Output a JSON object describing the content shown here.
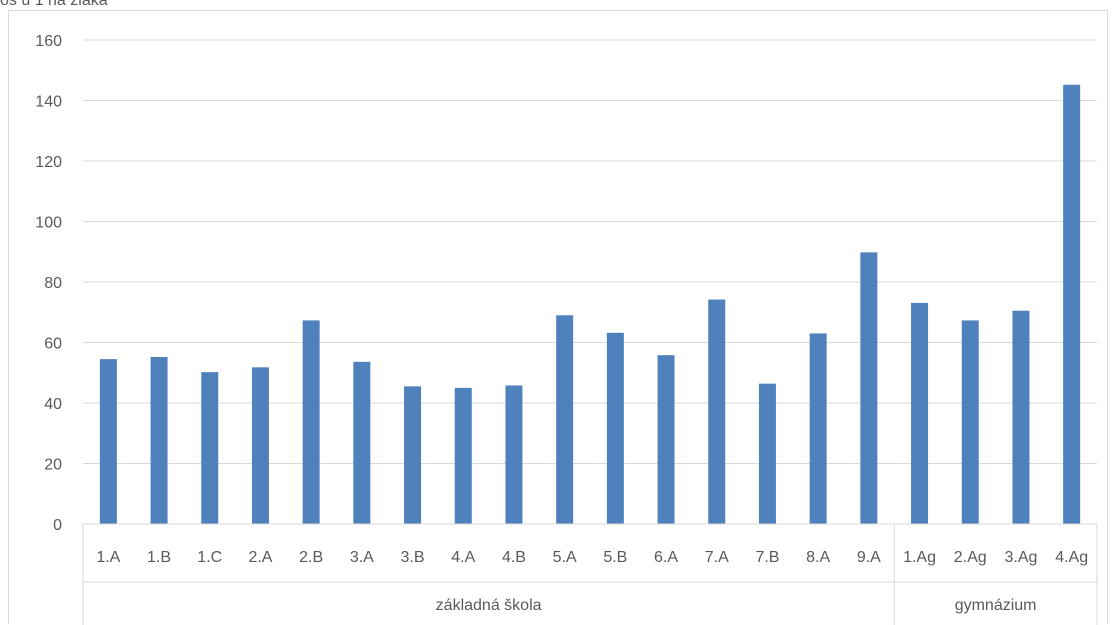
{
  "chart_data": {
    "type": "bar",
    "title": "os u 1 na žiaka",
    "categories": [
      "1.A",
      "1.B",
      "1.C",
      "2.A",
      "2.B",
      "3.A",
      "3.B",
      "4.A",
      "4.B",
      "5.A",
      "5.B",
      "6.A",
      "7.A",
      "7.B",
      "8.A",
      "9.A",
      "1.Ag",
      "2.Ag",
      "3.Ag",
      "4.Ag"
    ],
    "values": [
      54.5,
      55.2,
      50.2,
      51.8,
      67.3,
      53.6,
      45.5,
      45.0,
      45.8,
      69.0,
      63.2,
      55.8,
      74.2,
      46.4,
      63.0,
      89.8,
      73.1,
      67.3,
      70.5,
      145.2
    ],
    "groups": [
      {
        "label": "základná škola",
        "count": 16
      },
      {
        "label": "gymnázium",
        "count": 4
      }
    ],
    "ylim": [
      0,
      160
    ],
    "yticks": [
      0,
      20,
      40,
      60,
      80,
      100,
      120,
      140,
      160
    ],
    "grid": true,
    "bar_color": "#4f81bd",
    "grid_color": "#d9d9d9"
  }
}
